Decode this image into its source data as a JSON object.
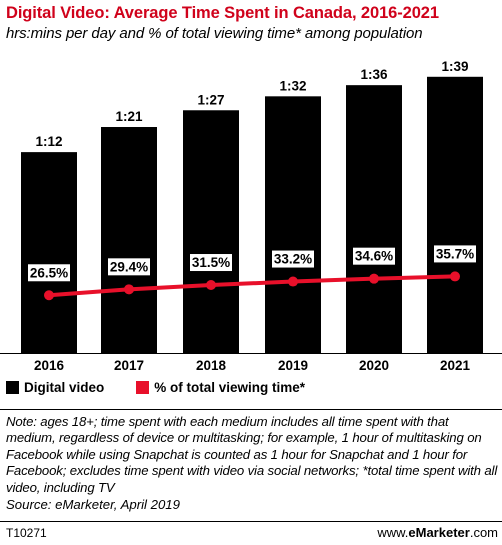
{
  "header": {
    "title": "Digital Video: Average Time Spent in Canada, 2016-2021",
    "subtitle": "hrs:mins per day and % of total viewing time* among population"
  },
  "colors": {
    "bar": "#000000",
    "line": "#e8102a",
    "title": "#d0021b",
    "label_bg": "#ffffff"
  },
  "chart_data": {
    "type": "bar",
    "categories": [
      "2016",
      "2017",
      "2018",
      "2019",
      "2020",
      "2021"
    ],
    "series": [
      {
        "name": "Digital video",
        "type": "bar",
        "values_minutes": [
          72,
          81,
          87,
          92,
          96,
          99
        ],
        "labels": [
          "1:12",
          "1:21",
          "1:27",
          "1:32",
          "1:36",
          "1:39"
        ]
      },
      {
        "name": "% of total viewing time*",
        "type": "line",
        "values": [
          26.5,
          29.4,
          31.5,
          33.2,
          34.6,
          35.7
        ],
        "labels": [
          "26.5%",
          "29.4%",
          "31.5%",
          "33.2%",
          "34.6%",
          "35.7%"
        ]
      }
    ],
    "legend_position": "bottom-left",
    "grid": false
  },
  "legend": {
    "bar_label": "Digital video",
    "line_label": "% of total viewing time*"
  },
  "note": "Note: ages 18+; time spent with each medium includes all time spent with that medium, regardless of device or multitasking; for example, 1 hour of multitasking on Facebook while using Snapchat is counted as 1 hour for Snapchat and 1 hour for Facebook; excludes time spent with video via social networks; *total time spent with all video, including TV",
  "source": "Source: eMarketer, April 2019",
  "footer": {
    "chart_id": "T10271",
    "brand_prefix": "www.",
    "brand_bold": "eMarketer",
    "brand_suffix": ".com"
  }
}
